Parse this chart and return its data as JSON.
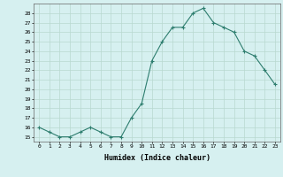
{
  "x": [
    0,
    1,
    2,
    3,
    4,
    5,
    6,
    7,
    8,
    9,
    10,
    11,
    12,
    13,
    14,
    15,
    16,
    17,
    18,
    19,
    20,
    21,
    22,
    23
  ],
  "y": [
    16,
    15.5,
    15,
    15,
    15.5,
    16,
    15.5,
    15,
    15,
    17,
    18.5,
    23,
    25,
    26.5,
    26.5,
    28,
    28.5,
    27,
    26.5,
    26,
    24,
    23.5,
    22,
    20.5
  ],
  "line_color": "#2d7d6e",
  "marker": "+",
  "markersize": 3.5,
  "bg_color": "#d6f0f0",
  "grid_color": "#b8d8d0",
  "xlabel": "Humidex (Indice chaleur)",
  "xlim": [
    -0.5,
    23.5
  ],
  "ylim": [
    14.5,
    29.0
  ],
  "yticks": [
    15,
    16,
    17,
    18,
    19,
    20,
    21,
    22,
    23,
    24,
    25,
    26,
    27,
    28
  ],
  "xticks": [
    0,
    1,
    2,
    3,
    4,
    5,
    6,
    7,
    8,
    9,
    10,
    11,
    12,
    13,
    14,
    15,
    16,
    17,
    18,
    19,
    20,
    21,
    22,
    23
  ],
  "xtick_labels": [
    "0",
    "1",
    "2",
    "3",
    "4",
    "5",
    "6",
    "7",
    "8",
    "9",
    "10",
    "11",
    "12",
    "13",
    "14",
    "15",
    "16",
    "17",
    "18",
    "19",
    "20",
    "21",
    "22",
    "23"
  ]
}
